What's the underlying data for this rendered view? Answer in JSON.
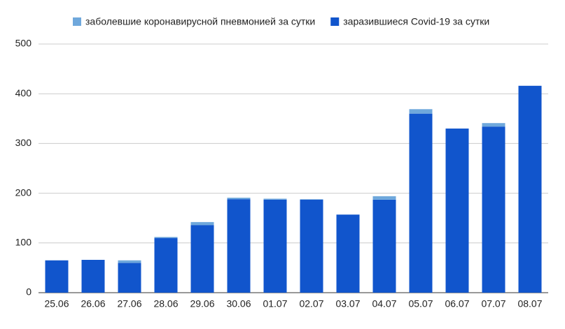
{
  "chart_data": {
    "type": "stacked_bar",
    "categories": [
      "25.06",
      "26.06",
      "27.06",
      "28.06",
      "29.06",
      "30.06",
      "01.07",
      "02.07",
      "03.07",
      "04.07",
      "05.07",
      "06.07",
      "07.07",
      "08.07"
    ],
    "series": [
      {
        "name": "заболевшие коронавирусной пневмонией за сутки",
        "color": "#6fa8dc",
        "values": [
          0,
          0,
          5,
          2,
          6,
          3,
          2,
          1,
          0,
          7,
          9,
          0,
          7,
          0
        ]
      },
      {
        "name": "заразившиеся Covid-19 за сутки",
        "color": "#1155cc",
        "values": [
          65,
          66,
          60,
          110,
          136,
          188,
          187,
          187,
          157,
          187,
          360,
          330,
          334,
          416
        ]
      }
    ],
    "ylim": [
      0,
      500
    ],
    "yticks": [
      0,
      100,
      200,
      300,
      400,
      500
    ],
    "grid": true
  }
}
